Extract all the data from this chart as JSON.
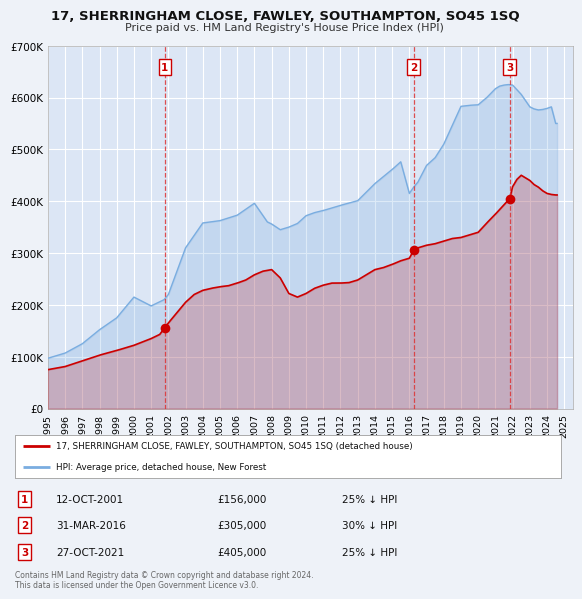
{
  "title": "17, SHERRINGHAM CLOSE, FAWLEY, SOUTHAMPTON, SO45 1SQ",
  "subtitle": "Price paid vs. HM Land Registry's House Price Index (HPI)",
  "background_color": "#eef2f8",
  "plot_bg_color": "#dce6f5",
  "grid_color": "#ffffff",
  "sale_line_color": "#cc0000",
  "hpi_line_color": "#7aade0",
  "sale_marker_color": "#cc0000",
  "sale_label": "17, SHERRINGHAM CLOSE, FAWLEY, SOUTHAMPTON, SO45 1SQ (detached house)",
  "hpi_label": "HPI: Average price, detached house, New Forest",
  "vline_color": "#dd3333",
  "ylim": [
    0,
    700000
  ],
  "yticks": [
    0,
    100000,
    200000,
    300000,
    400000,
    500000,
    600000,
    700000
  ],
  "ytick_labels": [
    "£0",
    "£100K",
    "£200K",
    "£300K",
    "£400K",
    "£500K",
    "£600K",
    "£700K"
  ],
  "xlim_start": 1995.0,
  "xlim_end": 2025.5,
  "sale_dates": [
    2001.79,
    2016.25,
    2021.83
  ],
  "sale_prices": [
    156000,
    305000,
    405000
  ],
  "sale_labels_text": [
    "1",
    "2",
    "3"
  ],
  "sale_info": [
    {
      "label": "1",
      "date": "12-OCT-2001",
      "price": "£156,000",
      "note": "25% ↓ HPI"
    },
    {
      "label": "2",
      "date": "31-MAR-2016",
      "price": "£305,000",
      "note": "30% ↓ HPI"
    },
    {
      "label": "3",
      "date": "27-OCT-2021",
      "price": "£405,000",
      "note": "25% ↓ HPI"
    }
  ],
  "footer": "Contains HM Land Registry data © Crown copyright and database right 2024.\nThis data is licensed under the Open Government Licence v3.0."
}
